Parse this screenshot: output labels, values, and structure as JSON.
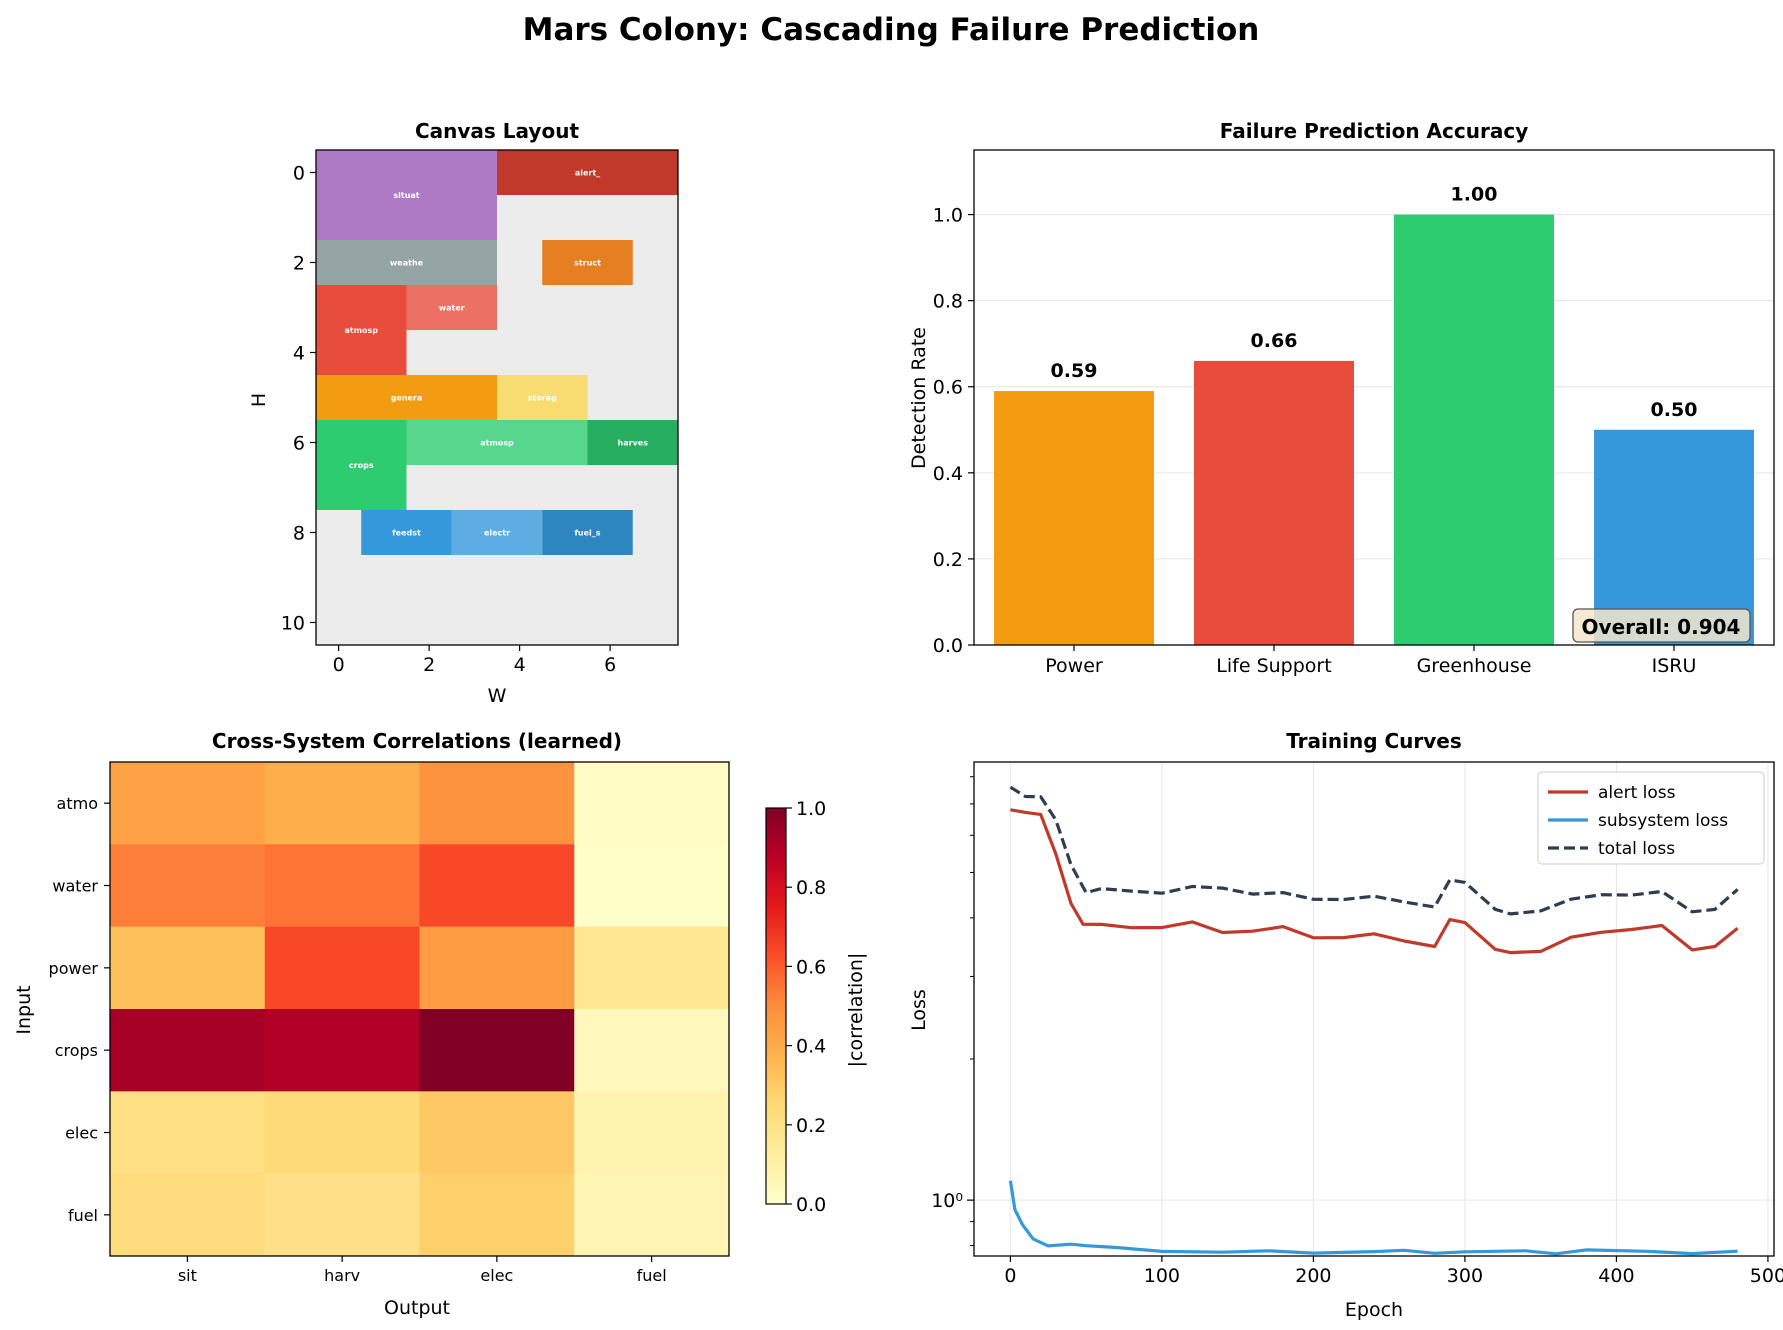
{
  "figure": {
    "suptitle": "Mars Colony: Cascading Failure Prediction"
  },
  "chart_data": [
    {
      "type": "heatmap",
      "id": "canvas_layout",
      "title": "Canvas Layout",
      "xlabel": "W",
      "ylabel": "H",
      "xlim": [
        -0.5,
        7.5
      ],
      "ylim": [
        10.5,
        -0.5
      ],
      "xticks": [
        0,
        2,
        4,
        6
      ],
      "yticks": [
        0,
        2,
        4,
        6,
        8,
        10
      ],
      "background": "#ececec",
      "cells": [
        {
          "label": "situat",
          "x0": -0.5,
          "x1": 3.5,
          "y0": -0.5,
          "y1": 1.5,
          "color": "#af7ac5"
        },
        {
          "label": "alert_",
          "x0": 3.5,
          "x1": 7.5,
          "y0": -0.5,
          "y1": 0.5,
          "color": "#c0392b"
        },
        {
          "label": "weathe",
          "x0": -0.5,
          "x1": 3.5,
          "y0": 1.5,
          "y1": 2.5,
          "color": "#95a5a6"
        },
        {
          "label": "struct",
          "x0": 4.5,
          "x1": 6.5,
          "y0": 1.5,
          "y1": 2.5,
          "color": "#e67e22"
        },
        {
          "label": "atmosp",
          "x0": -0.5,
          "x1": 1.5,
          "y0": 2.5,
          "y1": 4.5,
          "color": "#e74c3c"
        },
        {
          "label": "water",
          "x0": 1.5,
          "x1": 3.5,
          "y0": 2.5,
          "y1": 3.5,
          "color": "#ec7063"
        },
        {
          "label": "genera",
          "x0": -0.5,
          "x1": 3.5,
          "y0": 4.5,
          "y1": 5.5,
          "color": "#f39c12"
        },
        {
          "label": "storag",
          "x0": 3.5,
          "x1": 5.5,
          "y0": 4.5,
          "y1": 5.5,
          "color": "#f7dc6f"
        },
        {
          "label": "crops",
          "x0": -0.5,
          "x1": 1.5,
          "y0": 5.5,
          "y1": 7.5,
          "color": "#2ecc71"
        },
        {
          "label": "atmosp",
          "x0": 1.5,
          "x1": 5.5,
          "y0": 5.5,
          "y1": 6.5,
          "color": "#58d68d"
        },
        {
          "label": "harves",
          "x0": 5.5,
          "x1": 7.5,
          "y0": 5.5,
          "y1": 6.5,
          "color": "#27ae60"
        },
        {
          "label": "feedst",
          "x0": 0.5,
          "x1": 2.5,
          "y0": 7.5,
          "y1": 8.5,
          "color": "#3498db"
        },
        {
          "label": "electr",
          "x0": 2.5,
          "x1": 4.5,
          "y0": 7.5,
          "y1": 8.5,
          "color": "#5dade2"
        },
        {
          "label": "fuel_s",
          "x0": 4.5,
          "x1": 6.5,
          "y0": 7.5,
          "y1": 8.5,
          "color": "#2e86c1"
        }
      ]
    },
    {
      "type": "bar",
      "id": "accuracy",
      "title": "Failure Prediction Accuracy",
      "ylabel": "Detection Rate",
      "categories": [
        "Power",
        "Life Support",
        "Greenhouse",
        "ISRU"
      ],
      "values": [
        0.59,
        0.66,
        1.0,
        0.5
      ],
      "value_labels": [
        "0.59",
        "0.66",
        "1.00",
        "0.50"
      ],
      "colors": [
        "#f39c12",
        "#e74c3c",
        "#2ecc71",
        "#3498db"
      ],
      "ylim": [
        0,
        1.15
      ],
      "yticks": [
        0.0,
        0.2,
        0.4,
        0.6,
        0.8,
        1.0
      ],
      "grid": true,
      "annotation": "Overall: 0.904"
    },
    {
      "type": "heatmap",
      "id": "correlations",
      "title": "Cross-System Correlations (learned)",
      "xlabel": "Output",
      "ylabel": "Input",
      "x_categories": [
        "sit",
        "harv",
        "elec",
        "fuel"
      ],
      "y_categories": [
        "atmo",
        "water",
        "power",
        "crops",
        "elec",
        "fuel"
      ],
      "values": [
        [
          0.43,
          0.39,
          0.48,
          0.02
        ],
        [
          0.53,
          0.55,
          0.64,
          0.01
        ],
        [
          0.33,
          0.64,
          0.45,
          0.17
        ],
        [
          0.92,
          0.9,
          1.0,
          0.05
        ],
        [
          0.21,
          0.24,
          0.3,
          0.08
        ],
        [
          0.23,
          0.2,
          0.28,
          0.07
        ]
      ],
      "colorbar_label": "|correlation|",
      "colorbar_ticks": [
        0.0,
        0.2,
        0.4,
        0.6,
        0.8,
        1.0
      ],
      "vmin": 0,
      "vmax": 1
    },
    {
      "type": "line",
      "id": "training",
      "title": "Training Curves",
      "xlabel": "Epoch",
      "ylabel": "Loss",
      "yscale": "log",
      "xlim": [
        -24,
        504
      ],
      "ylim": [
        0.76,
        8.6
      ],
      "xticks": [
        0,
        100,
        200,
        300,
        400,
        500
      ],
      "ytick_major_label": "10⁰",
      "legend": "top-right",
      "grid": true,
      "series": [
        {
          "name": "alert loss",
          "color": "#c0392b",
          "dash": "solid",
          "points": [
            [
              0,
              6.8
            ],
            [
              10,
              6.75
            ],
            [
              20,
              6.6
            ],
            [
              30,
              5.5
            ],
            [
              40,
              4.3
            ],
            [
              48,
              3.85
            ],
            [
              60,
              3.9
            ],
            [
              80,
              3.8
            ],
            [
              100,
              3.8
            ],
            [
              120,
              3.95
            ],
            [
              140,
              3.7
            ],
            [
              160,
              3.75
            ],
            [
              180,
              3.85
            ],
            [
              200,
              3.6
            ],
            [
              220,
              3.65
            ],
            [
              240,
              3.7
            ],
            [
              260,
              3.55
            ],
            [
              280,
              3.5
            ],
            [
              290,
              3.95
            ],
            [
              300,
              3.9
            ],
            [
              320,
              3.45
            ],
            [
              330,
              3.35
            ],
            [
              350,
              3.4
            ],
            [
              370,
              3.65
            ],
            [
              390,
              3.7
            ],
            [
              410,
              3.8
            ],
            [
              430,
              3.85
            ],
            [
              450,
              3.4
            ],
            [
              465,
              3.5
            ],
            [
              480,
              3.8
            ]
          ]
        },
        {
          "name": "subsystem loss",
          "color": "#3498db",
          "dash": "solid",
          "points": [
            [
              0,
              1.1
            ],
            [
              3,
              0.96
            ],
            [
              8,
              0.88
            ],
            [
              15,
              0.83
            ],
            [
              25,
              0.8
            ],
            [
              40,
              0.8
            ],
            [
              50,
              0.805
            ],
            [
              70,
              0.79
            ],
            [
              100,
              0.775
            ],
            [
              140,
              0.78
            ],
            [
              170,
              0.775
            ],
            [
              200,
              0.772
            ],
            [
              240,
              0.78
            ],
            [
              260,
              0.776
            ],
            [
              280,
              0.774
            ],
            [
              300,
              0.776
            ],
            [
              340,
              0.775
            ],
            [
              360,
              0.774
            ],
            [
              380,
              0.78
            ],
            [
              420,
              0.776
            ],
            [
              450,
              0.774
            ],
            [
              480,
              0.778
            ]
          ]
        },
        {
          "name": "total loss",
          "color": "#2c3e50",
          "dash": "dashed",
          "points": [
            [
              0,
              7.6
            ],
            [
              10,
              7.3
            ],
            [
              20,
              7.2
            ],
            [
              30,
              6.5
            ],
            [
              40,
              5.2
            ],
            [
              50,
              4.5
            ],
            [
              60,
              4.65
            ],
            [
              80,
              4.55
            ],
            [
              100,
              4.5
            ],
            [
              120,
              4.7
            ],
            [
              140,
              4.6
            ],
            [
              160,
              4.5
            ],
            [
              180,
              4.55
            ],
            [
              200,
              4.35
            ],
            [
              220,
              4.4
            ],
            [
              240,
              4.45
            ],
            [
              260,
              4.3
            ],
            [
              280,
              4.25
            ],
            [
              290,
              4.8
            ],
            [
              300,
              4.75
            ],
            [
              320,
              4.2
            ],
            [
              330,
              4.05
            ],
            [
              350,
              4.15
            ],
            [
              370,
              4.4
            ],
            [
              390,
              4.45
            ],
            [
              410,
              4.5
            ],
            [
              430,
              4.55
            ],
            [
              450,
              4.1
            ],
            [
              465,
              4.2
            ],
            [
              480,
              4.6
            ]
          ]
        }
      ]
    }
  ]
}
